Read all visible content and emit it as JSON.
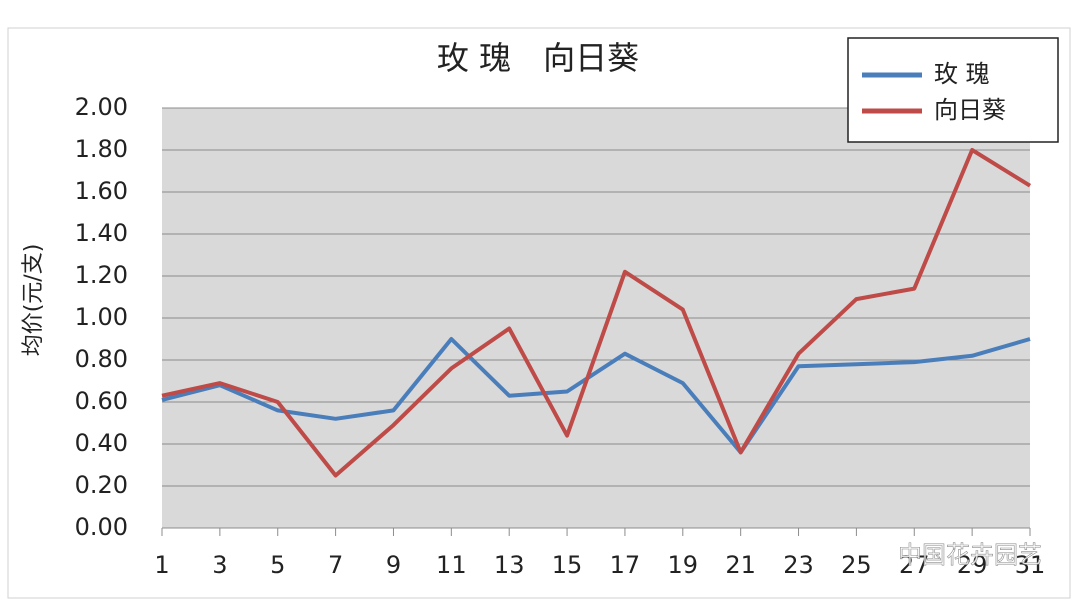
{
  "chart_data": {
    "type": "line",
    "title": "玫 瑰　向日葵",
    "y_label": "均价(元/支)",
    "x": [
      1,
      3,
      5,
      7,
      9,
      11,
      13,
      15,
      17,
      19,
      21,
      23,
      25,
      27,
      29,
      31
    ],
    "xlim": [
      1,
      31
    ],
    "xticks": [
      1,
      3,
      5,
      7,
      9,
      11,
      13,
      15,
      17,
      19,
      21,
      23,
      25,
      27,
      29,
      31
    ],
    "ylim": [
      0,
      2
    ],
    "yticks": [
      {
        "value": 0,
        "label": "0.00"
      },
      {
        "value": 0.2,
        "label": "0.20"
      },
      {
        "value": 0.4,
        "label": "0.40"
      },
      {
        "value": 0.6,
        "label": "0.60"
      },
      {
        "value": 0.8,
        "label": "0.80"
      },
      {
        "value": 1,
        "label": "1.00"
      },
      {
        "value": 1.2,
        "label": "1.20"
      },
      {
        "value": 1.4,
        "label": "1.40"
      },
      {
        "value": 1.6,
        "label": "1.60"
      },
      {
        "value": 1.8,
        "label": "1.80"
      },
      {
        "value": 2,
        "label": "2.00"
      }
    ],
    "grid": true,
    "legend": "top-right",
    "series": [
      {
        "name": "玫 瑰",
        "color": "#4a7ebb",
        "values": [
          0.61,
          0.68,
          0.56,
          0.52,
          0.56,
          0.9,
          0.63,
          0.65,
          0.83,
          0.69,
          0.36,
          0.77,
          0.78,
          0.79,
          0.82,
          0.9
        ]
      },
      {
        "name": "向日葵",
        "color": "#be4b48",
        "values": [
          0.63,
          0.69,
          0.6,
          0.25,
          0.49,
          0.76,
          0.95,
          0.44,
          1.22,
          1.04,
          0.36,
          0.83,
          1.09,
          1.14,
          1.8,
          1.63
        ]
      }
    ],
    "watermark": "中国花卉园艺"
  }
}
